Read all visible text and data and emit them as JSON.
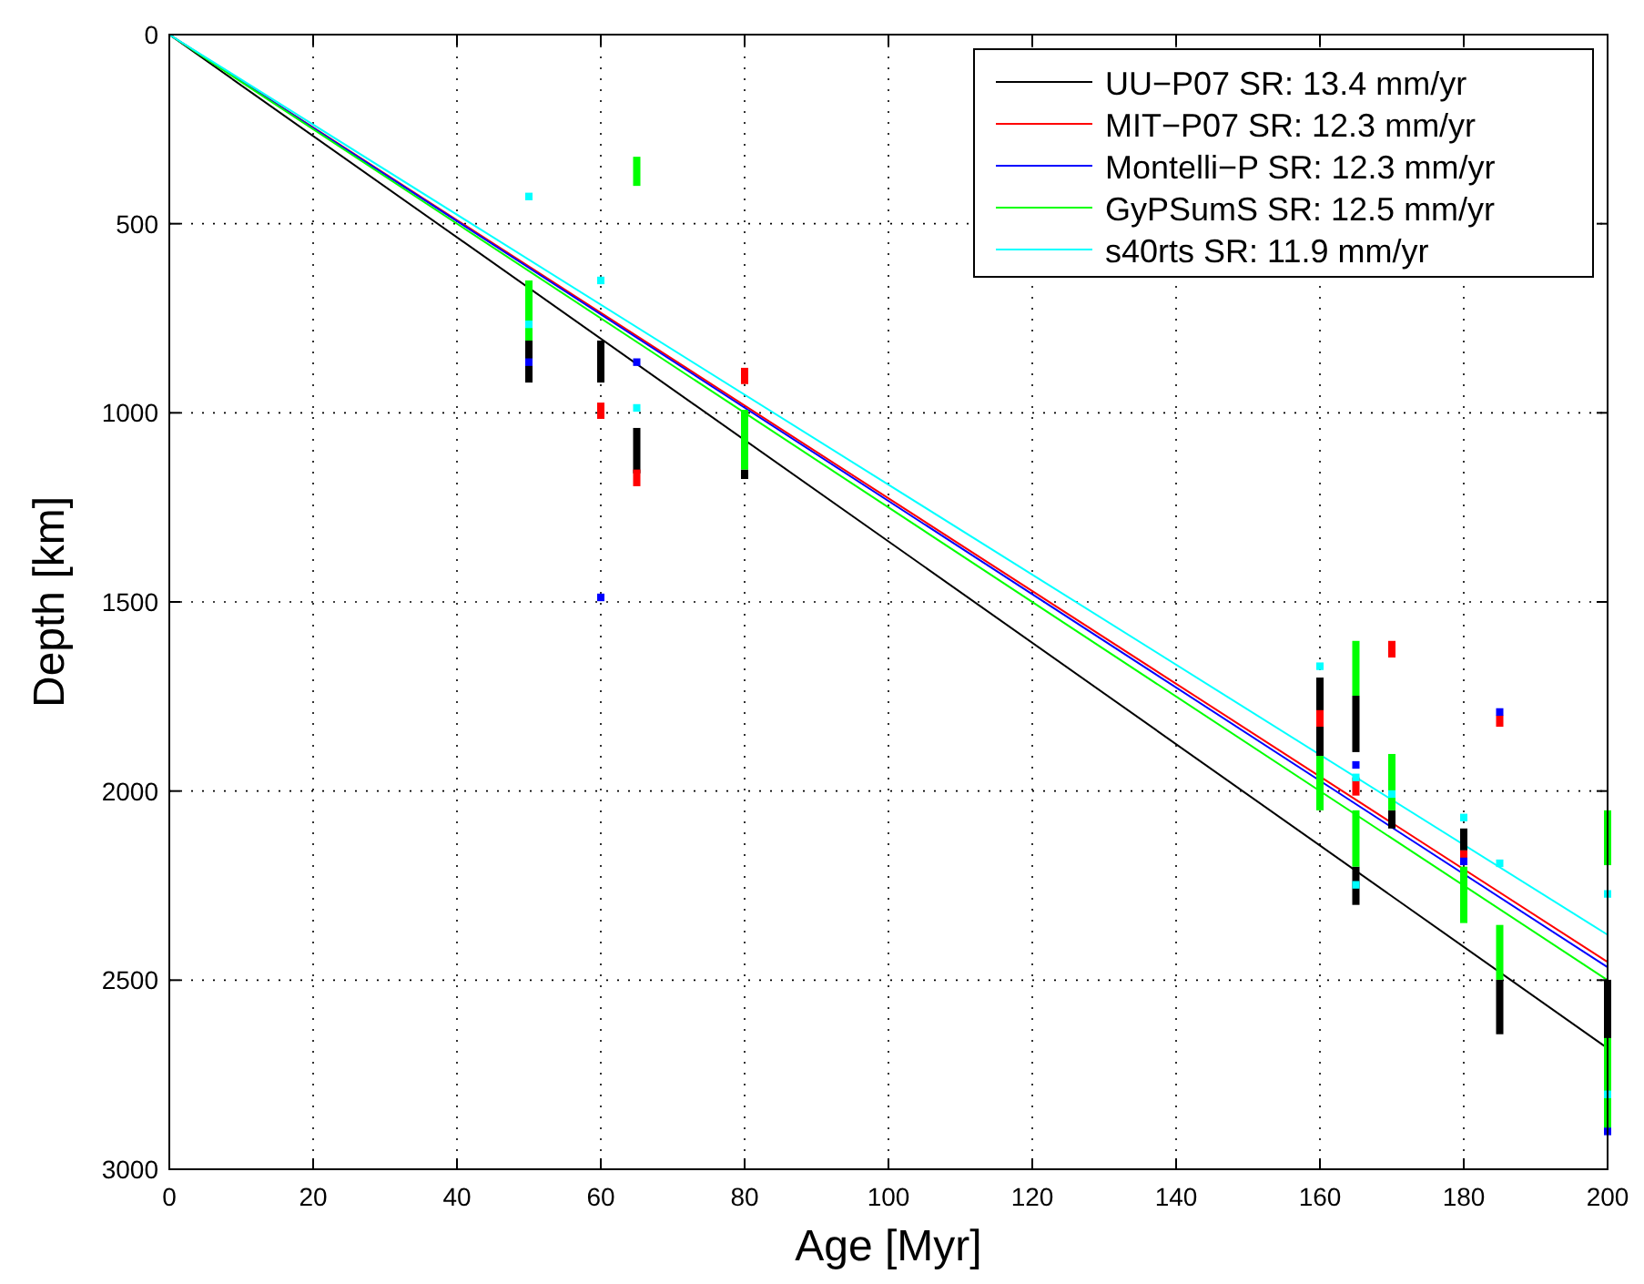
{
  "chart_data": {
    "type": "line",
    "xlabel": "Age [Myr]",
    "ylabel": "Depth [km]",
    "xlim": [
      0,
      200
    ],
    "xticks": [
      0,
      20,
      40,
      60,
      80,
      100,
      120,
      140,
      160,
      180,
      200
    ],
    "ylim": [
      3000,
      0
    ],
    "yticks": [
      0,
      500,
      1000,
      1500,
      2000,
      2500,
      3000
    ],
    "grid": true,
    "legend": "top right",
    "series": [
      {
        "name": "UU−P07 SR: 13.4 mm/yr",
        "color": "#000000",
        "x": [
          0,
          200
        ],
        "values": [
          0,
          2680
        ]
      },
      {
        "name": "MIT−P07 SR: 12.3 mm/yr",
        "color": "#ff0000",
        "x": [
          0,
          200
        ],
        "values": [
          0,
          2452
        ]
      },
      {
        "name": "Montelli−P SR: 12.3 mm/yr",
        "color": "#0000ff",
        "x": [
          0,
          200
        ],
        "values": [
          0,
          2466
        ]
      },
      {
        "name": "GyPSumS SR: 12.5 mm/yr",
        "color": "#00ff00",
        "x": [
          0,
          200
        ],
        "values": [
          0,
          2500
        ]
      },
      {
        "name": "s40rts SR: 11.9 mm/yr",
        "color": "#00ffff",
        "x": [
          0,
          200
        ],
        "values": [
          0,
          2380
        ]
      },
      {
        "type": "bar",
        "color": "#000000",
        "x": [
          50,
          60,
          65,
          80,
          160,
          165,
          170,
          180,
          185,
          200
        ],
        "base": [
          809,
          809,
          1040,
          1150,
          1700,
          1748,
          2051,
          2099,
          2499,
          2499
        ],
        "values": [
          111,
          111,
          120,
          25,
          207,
          149,
          48,
          58,
          144,
          168
        ]
      },
      {
        "type": "bar",
        "color": "#000000",
        "x": [
          165
        ],
        "base": [
          2200
        ],
        "values": [
          101
        ]
      },
      {
        "type": "bar",
        "color": "#ff0000",
        "x": [
          60,
          65,
          80,
          160,
          165,
          170,
          180,
          185
        ],
        "base": [
          973,
          1150,
          881,
          1786,
          1964,
          1603,
          2157,
          1800
        ],
        "values": [
          43,
          44,
          43,
          44,
          48,
          44,
          24,
          30
        ]
      },
      {
        "type": "bar",
        "color": "#00ff00",
        "x": [
          50,
          65,
          80,
          160,
          165,
          170,
          180,
          185,
          200
        ],
        "base": [
          650,
          323,
          992,
          1907,
          1603,
          1902,
          2200,
          2354,
          2051
        ],
        "values": [
          159,
          77,
          158,
          144,
          145,
          149,
          149,
          145,
          145
        ]
      },
      {
        "type": "bar",
        "color": "#00ff00",
        "x": [
          165,
          200
        ],
        "base": [
          2051,
          2653
        ],
        "values": [
          149,
          250
        ]
      },
      {
        "type": "bar",
        "color": "#0000ff",
        "x": [
          50,
          60,
          65,
          165,
          180,
          185,
          200
        ],
        "base": [
          856,
          1478,
          856,
          1921,
          2176,
          1781,
          2890
        ],
        "values": [
          20,
          20,
          20,
          20,
          20,
          20,
          20
        ]
      },
      {
        "type": "bar",
        "color": "#00ffff",
        "x": [
          50,
          60,
          65,
          160,
          165,
          170,
          180,
          185,
          200
        ],
        "base": [
          418,
          640,
          977,
          1660,
          1954,
          1998,
          2060,
          2181,
          2262
        ],
        "values": [
          20,
          20,
          20,
          20,
          20,
          20,
          20,
          20,
          20
        ]
      },
      {
        "type": "bar",
        "color": "#00ffff",
        "x": [
          50,
          165,
          200
        ],
        "base": [
          756,
          2238,
          2792
        ],
        "values": [
          20,
          20,
          20
        ]
      }
    ]
  }
}
